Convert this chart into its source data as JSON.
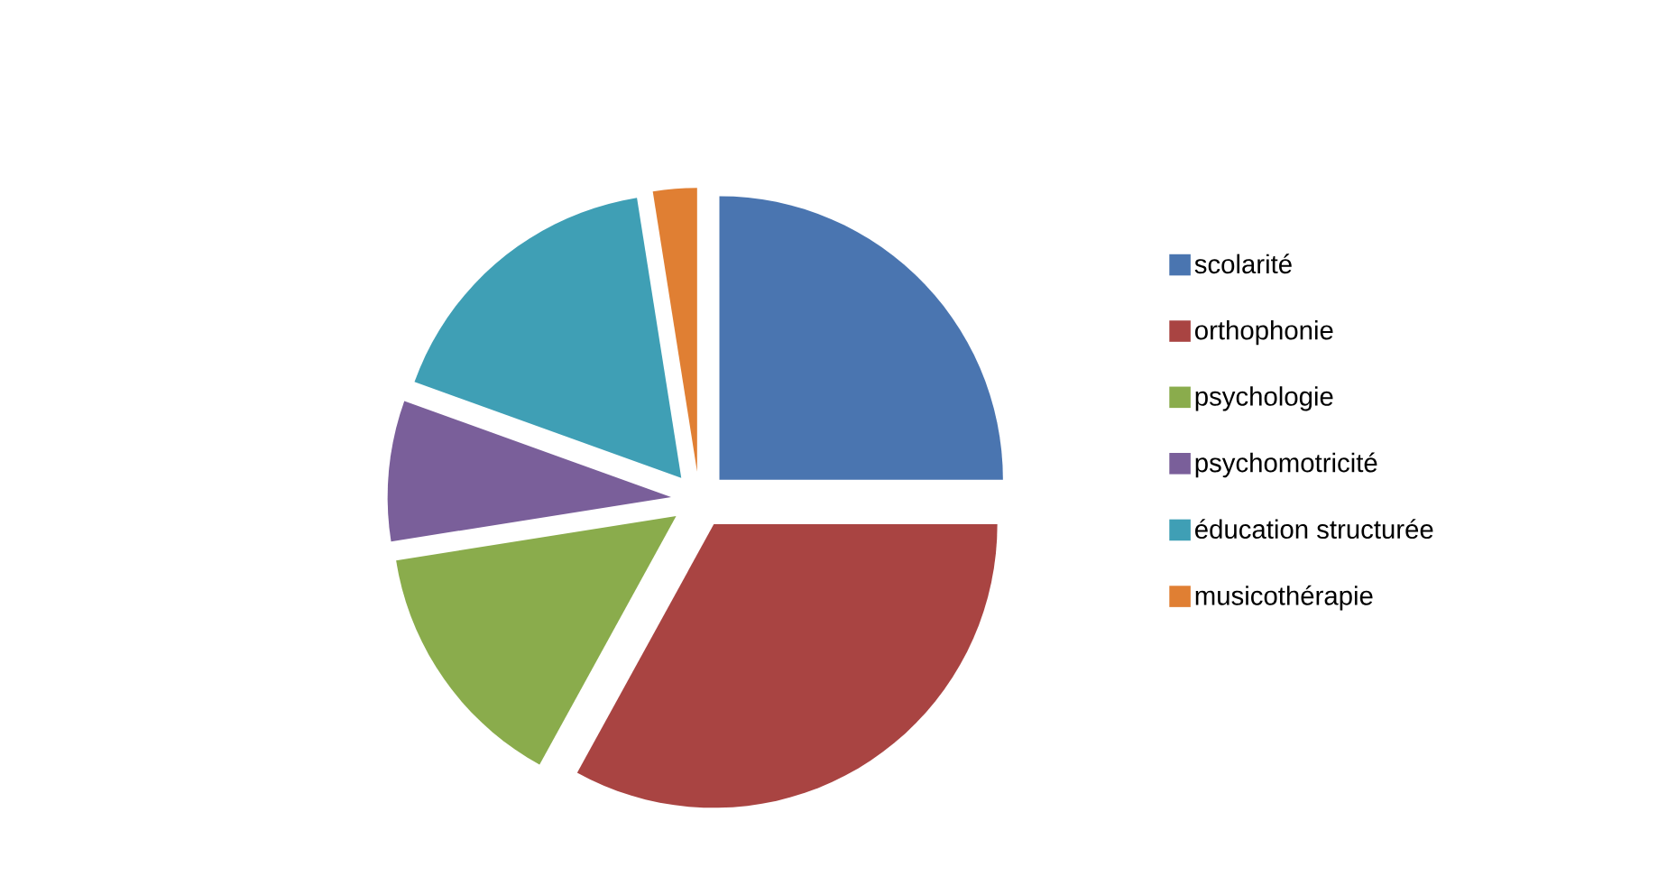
{
  "chart_data": {
    "type": "pie",
    "categories": [
      "scolarité",
      "orthophonie",
      "psychologie",
      "psychomotricité",
      "éducation structurée",
      "musicothérapie"
    ],
    "values": [
      25,
      33,
      14.5,
      8,
      17,
      2.5
    ],
    "colors": [
      "#4a75b0",
      "#a94442",
      "#8aac4c",
      "#7a5f9a",
      "#3f9fb5",
      "#e07f33"
    ],
    "legend": "right"
  }
}
